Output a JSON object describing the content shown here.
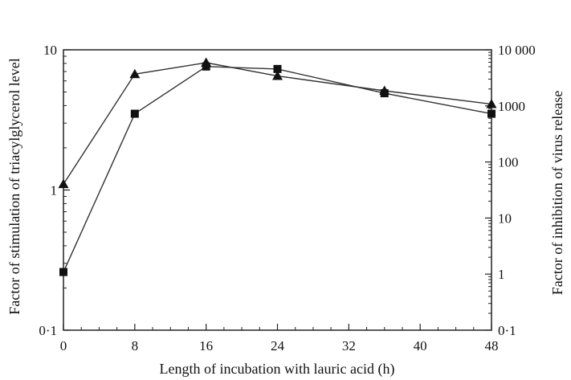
{
  "chart_data": {
    "type": "line",
    "xlabel": "Length of incubation with lauric acid (h)",
    "ylabel": "Factor of stimulation of triacylglycerol level",
    "y2label": "Factor of inhibition of virus release",
    "x_ticks": [
      "0",
      "8",
      "16",
      "24",
      "32",
      "40",
      "48"
    ],
    "y_ticks": [
      "0·1",
      "1",
      "10"
    ],
    "y2_ticks": [
      "0·1",
      "1",
      "10",
      "100",
      "1000",
      "10 000"
    ],
    "xlim": [
      0,
      48
    ],
    "ylim": [
      0.1,
      10
    ],
    "y2lim": [
      0.1,
      10000
    ],
    "yscale": "log",
    "y2scale": "log",
    "grid": false,
    "series": [
      {
        "marker": "triangle",
        "axis": "left",
        "x": [
          0,
          8,
          16,
          24,
          36,
          48
        ],
        "y": [
          1.1,
          6.7,
          8.1,
          6.5,
          5.1,
          4.1
        ]
      },
      {
        "marker": "square",
        "axis": "left",
        "x": [
          0,
          8,
          16,
          24,
          36,
          48
        ],
        "y": [
          0.26,
          3.5,
          7.6,
          7.3,
          4.9,
          3.5
        ]
      }
    ]
  }
}
